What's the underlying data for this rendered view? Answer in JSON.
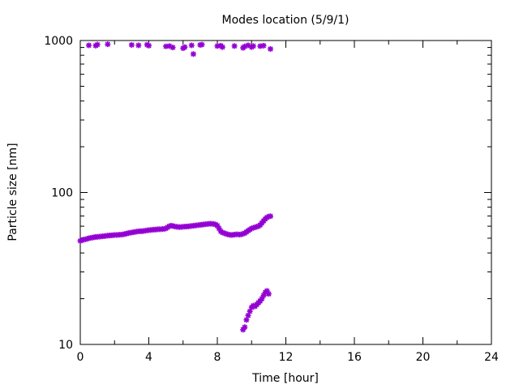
{
  "chart_data": {
    "type": "scatter",
    "title": "Modes location (5/9/1)",
    "xlabel": "Time [hour]",
    "ylabel": "Particle size [nm]",
    "xlim": [
      0,
      24
    ],
    "ylim": [
      10,
      1000
    ],
    "yscale": "log",
    "grid": false,
    "legend": "none",
    "marker_color": "#9400d3",
    "xticks": [
      0,
      4,
      8,
      12,
      16,
      20,
      24
    ],
    "xtick_labels": [
      "0",
      "4",
      "8",
      "12",
      "16",
      "20",
      "24"
    ],
    "yticks": [
      10,
      100,
      1000
    ],
    "ytick_labels": [
      "10",
      "100",
      "1000"
    ],
    "series": [
      {
        "points": [
          [
            0.0,
            48
          ],
          [
            0.1,
            48.5
          ],
          [
            0.2,
            49
          ],
          [
            0.3,
            49.2
          ],
          [
            0.4,
            49.5
          ],
          [
            0.5,
            50
          ],
          [
            0.6,
            50.2
          ],
          [
            0.7,
            50.5
          ],
          [
            0.8,
            50.7
          ],
          [
            0.9,
            51
          ],
          [
            1.0,
            51
          ],
          [
            1.1,
            51.2
          ],
          [
            1.2,
            51.3
          ],
          [
            1.3,
            51.5
          ],
          [
            1.4,
            51.6
          ],
          [
            1.5,
            51.8
          ],
          [
            1.6,
            52
          ],
          [
            1.7,
            52.1
          ],
          [
            1.8,
            52.2
          ],
          [
            1.9,
            52.3
          ],
          [
            2.0,
            52.5
          ],
          [
            2.1,
            52.5
          ],
          [
            2.2,
            52.6
          ],
          [
            2.3,
            52.7
          ],
          [
            2.4,
            52.8
          ],
          [
            2.5,
            53
          ],
          [
            2.6,
            53.3
          ],
          [
            2.7,
            53.6
          ],
          [
            2.8,
            54
          ],
          [
            2.9,
            54.3
          ],
          [
            3.0,
            54.5
          ],
          [
            3.1,
            54.8
          ],
          [
            3.2,
            55
          ],
          [
            3.3,
            55.3
          ],
          [
            3.4,
            55.5
          ],
          [
            3.5,
            55.6
          ],
          [
            3.6,
            55.6
          ],
          [
            3.7,
            55.8
          ],
          [
            3.8,
            56
          ],
          [
            3.9,
            56.3
          ],
          [
            4.0,
            56.5
          ],
          [
            4.1,
            56.6
          ],
          [
            4.2,
            56.8
          ],
          [
            4.3,
            57
          ],
          [
            4.4,
            57
          ],
          [
            4.5,
            57.2
          ],
          [
            4.6,
            57.3
          ],
          [
            4.7,
            57.3
          ],
          [
            4.8,
            57.5
          ],
          [
            4.9,
            57.6
          ],
          [
            5.0,
            58
          ],
          [
            5.1,
            59
          ],
          [
            5.2,
            60
          ],
          [
            5.3,
            60.5
          ],
          [
            5.4,
            60.2
          ],
          [
            5.5,
            59.8
          ],
          [
            5.6,
            59.5
          ],
          [
            5.7,
            59.3
          ],
          [
            5.8,
            59.2
          ],
          [
            5.9,
            59.3
          ],
          [
            6.0,
            59.5
          ],
          [
            6.1,
            59.6
          ],
          [
            6.2,
            59.7
          ],
          [
            6.3,
            59.8
          ],
          [
            6.4,
            60
          ],
          [
            6.5,
            60.2
          ],
          [
            6.6,
            60.4
          ],
          [
            6.7,
            60.6
          ],
          [
            6.8,
            60.8
          ],
          [
            6.9,
            61
          ],
          [
            7.0,
            61.2
          ],
          [
            7.1,
            61.4
          ],
          [
            7.2,
            61.6
          ],
          [
            7.3,
            61.8
          ],
          [
            7.4,
            62
          ],
          [
            7.5,
            62.2
          ],
          [
            7.6,
            62.3
          ],
          [
            7.7,
            62.2
          ],
          [
            7.8,
            62
          ],
          [
            7.9,
            61.5
          ],
          [
            8.0,
            60.5
          ],
          [
            8.1,
            58
          ],
          [
            8.2,
            55.5
          ],
          [
            8.3,
            54.5
          ],
          [
            8.4,
            54
          ],
          [
            8.5,
            53.5
          ],
          [
            8.6,
            53
          ],
          [
            8.7,
            52.7
          ],
          [
            8.8,
            52.5
          ],
          [
            8.9,
            52.6
          ],
          [
            9.0,
            52.8
          ],
          [
            9.1,
            53
          ],
          [
            9.2,
            53
          ],
          [
            9.3,
            52.8
          ],
          [
            9.4,
            53
          ],
          [
            9.5,
            53.5
          ],
          [
            9.6,
            54
          ],
          [
            9.7,
            55
          ],
          [
            9.8,
            56
          ],
          [
            9.9,
            57
          ],
          [
            10.0,
            58
          ],
          [
            10.1,
            58.5
          ],
          [
            10.2,
            59
          ],
          [
            10.3,
            59.5
          ],
          [
            10.4,
            60
          ],
          [
            10.5,
            61
          ],
          [
            10.6,
            63
          ],
          [
            10.7,
            65
          ],
          [
            10.8,
            67
          ],
          [
            10.9,
            68.5
          ],
          [
            11.0,
            69.5
          ],
          [
            11.1,
            69.8
          ]
        ]
      },
      {
        "points": [
          [
            9.5,
            12.5
          ],
          [
            9.6,
            13
          ],
          [
            9.7,
            14.5
          ],
          [
            9.8,
            15.5
          ],
          [
            9.9,
            16.5
          ],
          [
            10.0,
            17.5
          ],
          [
            10.1,
            18
          ],
          [
            10.2,
            17.8
          ],
          [
            10.3,
            18.3
          ],
          [
            10.4,
            18.8
          ],
          [
            10.5,
            19.3
          ],
          [
            10.6,
            20
          ],
          [
            10.7,
            21
          ],
          [
            10.8,
            22
          ],
          [
            10.9,
            22.5
          ],
          [
            11.0,
            21.5
          ]
        ]
      },
      {
        "points": [
          [
            0.5,
            930
          ],
          [
            0.9,
            925
          ],
          [
            1.0,
            940
          ],
          [
            1.6,
            945
          ],
          [
            3.0,
            935
          ],
          [
            3.4,
            930
          ],
          [
            3.9,
            938
          ],
          [
            4.0,
            925
          ],
          [
            5.0,
            915
          ],
          [
            5.2,
            920
          ],
          [
            5.4,
            900
          ],
          [
            6.0,
            890
          ],
          [
            6.1,
            905
          ],
          [
            6.5,
            930
          ],
          [
            6.6,
            815
          ],
          [
            7.0,
            935
          ],
          [
            7.1,
            940
          ],
          [
            8.0,
            920
          ],
          [
            8.2,
            925
          ],
          [
            8.3,
            905
          ],
          [
            9.0,
            920
          ],
          [
            9.5,
            895
          ],
          [
            9.6,
            915
          ],
          [
            9.8,
            930
          ],
          [
            10.0,
            905
          ],
          [
            10.1,
            920
          ],
          [
            10.5,
            918
          ],
          [
            10.7,
            925
          ],
          [
            11.1,
            880
          ]
        ]
      }
    ]
  }
}
